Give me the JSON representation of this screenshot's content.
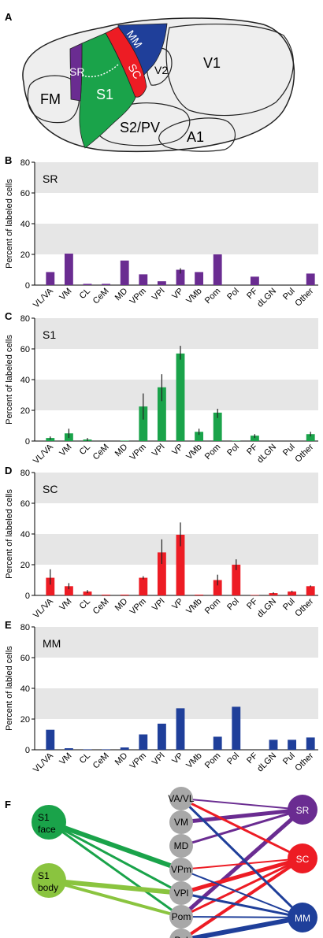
{
  "panels": {
    "A": "A",
    "B": "B",
    "C": "C",
    "D": "D",
    "E": "E",
    "F": "F"
  },
  "brain_map": {
    "regions": {
      "fm": "FM",
      "s1": "S1",
      "s2pv": "S2/PV",
      "a1": "A1",
      "v1": "V1",
      "v2": "V2",
      "sr": "SR",
      "sc": "SC",
      "mm": "MM"
    },
    "colors": {
      "sr": "#6a2c91",
      "s1": "#1aa34a",
      "sc": "#ed1c24",
      "mm": "#1f3f9a",
      "cortex": "#eeeeee",
      "outline": "#222222"
    }
  },
  "chart_data": [
    {
      "type": "bar",
      "panel": "B",
      "title": "SR",
      "ylabel": "Percent of labeled cells",
      "ylim": [
        0,
        80
      ],
      "yticks": [
        0,
        20,
        40,
        60,
        80
      ],
      "color": "#6a2c91",
      "grid": "horizontal bands",
      "categories": [
        "VL/VA",
        "VM",
        "CL",
        "CeM",
        "MD",
        "VPm",
        "VPl",
        "VP",
        "VMb",
        "Pom",
        "Pol",
        "PF",
        "dLGN",
        "Pul",
        "Other"
      ],
      "values": [
        8.5,
        20.5,
        0.8,
        0.8,
        16,
        7,
        2.5,
        10,
        8.5,
        20,
        0,
        5.5,
        0,
        0,
        7.5
      ],
      "err_low": [
        null,
        null,
        null,
        null,
        null,
        null,
        null,
        7.5,
        null,
        null,
        null,
        null,
        null,
        null,
        null
      ],
      "err_high": [
        null,
        null,
        null,
        null,
        null,
        null,
        null,
        11,
        null,
        null,
        null,
        null,
        null,
        null,
        null
      ]
    },
    {
      "type": "bar",
      "panel": "C",
      "title": "S1",
      "ylabel": "Percent of labeled cells",
      "ylim": [
        0,
        80
      ],
      "yticks": [
        0,
        20,
        40,
        60,
        80
      ],
      "color": "#1aa34a",
      "grid": "horizontal bands",
      "categories": [
        "VL/VA",
        "VM",
        "CL",
        "CeM",
        "MD",
        "VPm",
        "VPl",
        "VP",
        "VMb",
        "Pom",
        "Pol",
        "PF",
        "dLGN",
        "Pul",
        "Other"
      ],
      "values": [
        2,
        5,
        1,
        0,
        0.3,
        22.5,
        35,
        57,
        6,
        18.5,
        0.3,
        3.5,
        0,
        0,
        4.5
      ],
      "err_low": [
        1,
        2,
        0,
        null,
        null,
        14,
        26,
        53,
        4,
        15,
        null,
        2,
        null,
        null,
        3
      ],
      "err_high": [
        3,
        8,
        2,
        null,
        null,
        31,
        43.5,
        62,
        8,
        21,
        null,
        4.5,
        null,
        null,
        6
      ]
    },
    {
      "type": "bar",
      "panel": "D",
      "title": "SC",
      "ylabel": "Percent of labeled cells",
      "ylim": [
        0,
        80
      ],
      "yticks": [
        0,
        20,
        40,
        60,
        80
      ],
      "color": "#ed1c24",
      "grid": "horizontal bands",
      "categories": [
        "VL/VA",
        "VM",
        "CL",
        "CeM",
        "MD",
        "VPm",
        "VPl",
        "VP",
        "VMb",
        "Pom",
        "Pol",
        "PF",
        "dLGN",
        "Pul",
        "Other"
      ],
      "values": [
        11.5,
        6,
        2.5,
        0.5,
        0.5,
        11.5,
        28,
        39.5,
        0.5,
        10,
        20,
        0.3,
        1.5,
        2.5,
        6
      ],
      "err_low": [
        7,
        4,
        1.5,
        null,
        null,
        10.5,
        20.5,
        32,
        null,
        6.5,
        16.5,
        null,
        1,
        2,
        5.5
      ],
      "err_high": [
        17,
        8,
        3.5,
        null,
        null,
        12.5,
        36.5,
        47.5,
        null,
        13.5,
        23.5,
        null,
        2,
        3,
        6.5
      ]
    },
    {
      "type": "bar",
      "panel": "E",
      "title": "MM",
      "ylabel": "Percent of labled cells",
      "ylim": [
        0,
        80
      ],
      "yticks": [
        0,
        20,
        40,
        60,
        80
      ],
      "color": "#1f3f9a",
      "grid": "horizontal bands",
      "categories": [
        "VL/VA",
        "VM",
        "CL",
        "CeM",
        "MD",
        "VPm",
        "VPl",
        "VP",
        "VMb",
        "Pom",
        "Pol",
        "PF",
        "dLGN",
        "Pul",
        "Other"
      ],
      "values": [
        13,
        1,
        0.3,
        0.3,
        1.5,
        10,
        17,
        27,
        0,
        8.5,
        28,
        0,
        6.5,
        6.5,
        8
      ],
      "err_low": [
        null,
        null,
        null,
        null,
        null,
        null,
        null,
        null,
        null,
        null,
        null,
        null,
        null,
        null,
        null
      ],
      "err_high": [
        null,
        null,
        null,
        null,
        null,
        null,
        null,
        null,
        null,
        null,
        null,
        null,
        null,
        null,
        null
      ]
    }
  ],
  "network": {
    "sources": [
      {
        "id": "s1face",
        "line1": "S1",
        "line2": "face",
        "color": "#1aa34a"
      },
      {
        "id": "s1body",
        "line1": "S1",
        "line2": "body",
        "color": "#8ac43f"
      }
    ],
    "nuclei": [
      {
        "id": "vavl",
        "label": "VA/VL"
      },
      {
        "id": "vm",
        "label": "VM"
      },
      {
        "id": "md",
        "label": "MD"
      },
      {
        "id": "vpm",
        "label": "VPm"
      },
      {
        "id": "vpl",
        "label": "VPl"
      },
      {
        "id": "pom",
        "label": "Pom"
      },
      {
        "id": "pol",
        "label": "Pol"
      }
    ],
    "targets": [
      {
        "id": "sr",
        "label": "SR",
        "color": "#6a2c91"
      },
      {
        "id": "sc",
        "label": "SC",
        "color": "#ed1c24"
      },
      {
        "id": "mm",
        "label": "MM",
        "color": "#1f3f9a"
      }
    ],
    "node_color": "#a8a8a8",
    "edges": [
      {
        "from": "s1face",
        "to": "vpm",
        "w": 6,
        "color": "#1aa34a"
      },
      {
        "from": "s1face",
        "to": "vpl",
        "w": 3,
        "color": "#1aa34a"
      },
      {
        "from": "s1face",
        "to": "pom",
        "w": 3,
        "color": "#1aa34a"
      },
      {
        "from": "s1body",
        "to": "vpl",
        "w": 6,
        "color": "#8ac43f"
      },
      {
        "from": "s1body",
        "to": "pom",
        "w": 4,
        "color": "#8ac43f"
      },
      {
        "from": "vavl",
        "to": "sr",
        "w": 2,
        "color": "#6a2c91"
      },
      {
        "from": "vm",
        "to": "sr",
        "w": 5,
        "color": "#6a2c91"
      },
      {
        "from": "md",
        "to": "sr",
        "w": 3,
        "color": "#6a2c91"
      },
      {
        "from": "pom",
        "to": "sr",
        "w": 5,
        "color": "#6a2c91"
      },
      {
        "from": "vavl",
        "to": "sc",
        "w": 3,
        "color": "#ed1c24"
      },
      {
        "from": "vpm",
        "to": "sc",
        "w": 2,
        "color": "#ed1c24"
      },
      {
        "from": "vpl",
        "to": "sc",
        "w": 5,
        "color": "#ed1c24"
      },
      {
        "from": "pom",
        "to": "sc",
        "w": 3,
        "color": "#ed1c24"
      },
      {
        "from": "pol",
        "to": "sc",
        "w": 4,
        "color": "#ed1c24"
      },
      {
        "from": "vavl",
        "to": "mm",
        "w": 3,
        "color": "#1f3f9a"
      },
      {
        "from": "vpm",
        "to": "mm",
        "w": 2,
        "color": "#1f3f9a"
      },
      {
        "from": "vpl",
        "to": "mm",
        "w": 3,
        "color": "#1f3f9a"
      },
      {
        "from": "pom",
        "to": "mm",
        "w": 2,
        "color": "#1f3f9a"
      },
      {
        "from": "pol",
        "to": "mm",
        "w": 6,
        "color": "#1f3f9a"
      }
    ]
  }
}
